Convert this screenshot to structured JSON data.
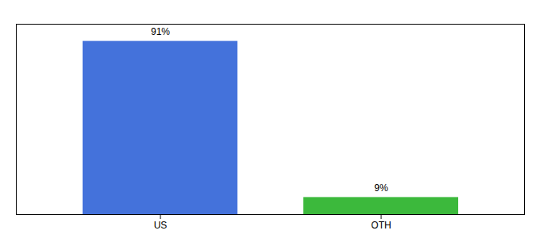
{
  "chart_data": {
    "type": "bar",
    "categories": [
      "US",
      "OTH"
    ],
    "values": [
      91,
      9
    ],
    "value_labels": [
      "91%",
      "9%"
    ],
    "colors": [
      "#4472db",
      "#3cb93c"
    ],
    "ylim": [
      0,
      100
    ],
    "data_labels": true,
    "tick_labels": "x"
  }
}
